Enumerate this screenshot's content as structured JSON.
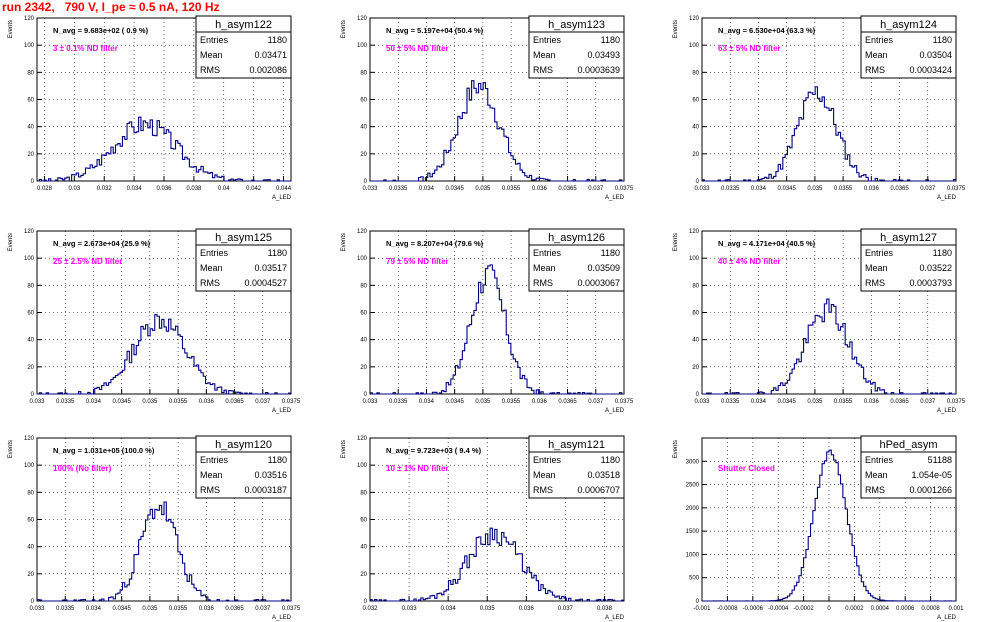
{
  "header": {
    "run_title": "run 2342,   790 V, I_pe ≈ 0.5 nA, 120 Hz"
  },
  "chart_data": [
    {
      "type": "histogram",
      "hist_name": "h_asym122",
      "ylabel": "Events",
      "xlabel": "A_LED",
      "xlim": [
        0.0275,
        0.0445
      ],
      "ylim": [
        0,
        120
      ],
      "xticks": [
        0.028,
        0.03,
        0.032,
        0.034,
        0.036,
        0.038,
        0.04,
        0.042,
        0.044
      ],
      "xtick_labels": [
        "0.028",
        "0.03",
        "0.032",
        "0.034",
        "0.036",
        "0.038",
        "0.04",
        "0.042",
        "0.044"
      ],
      "yticks": [
        0,
        20,
        40,
        60,
        80,
        100,
        120
      ],
      "stats": {
        "entries": "1180",
        "mean": "0.03471",
        "rms": "0.002086"
      },
      "navg": "N_avg = 9.683e+02 ( 0.9 %)",
      "filter": "3 ± 0.1% ND filter",
      "shape": {
        "mean": 0.03471,
        "sigma": 0.002086,
        "peak": 42,
        "seed": 3
      }
    },
    {
      "type": "histogram",
      "hist_name": "h_asym123",
      "ylabel": "Events",
      "xlabel": "A_LED",
      "xlim": [
        0.033,
        0.0375
      ],
      "ylim": [
        0,
        120
      ],
      "xticks": [
        0.033,
        0.0335,
        0.034,
        0.0345,
        0.035,
        0.0355,
        0.036,
        0.0365,
        0.037,
        0.0375
      ],
      "xtick_labels": [
        "0.033",
        "0.0335",
        "0.034",
        "0.0345",
        "0.035",
        "0.0355",
        "0.036",
        "0.0365",
        "0.037",
        "0.0375"
      ],
      "yticks": [
        0,
        20,
        40,
        60,
        80,
        100,
        120
      ],
      "stats": {
        "entries": "1180",
        "mean": "0.03493",
        "rms": "0.0003639"
      },
      "navg": "N_avg = 5.197e+04 (50.4 %)",
      "filter": "50 ± 5% ND filter",
      "shape": {
        "mean": 0.03493,
        "sigma": 0.0003639,
        "peak": 70,
        "seed": 7
      }
    },
    {
      "type": "histogram",
      "hist_name": "h_asym124",
      "ylabel": "Events",
      "xlabel": "A_LED",
      "xlim": [
        0.033,
        0.0375
      ],
      "ylim": [
        0,
        120
      ],
      "xticks": [
        0.033,
        0.0335,
        0.034,
        0.0345,
        0.035,
        0.0355,
        0.036,
        0.0365,
        0.037,
        0.0375
      ],
      "xtick_labels": [
        "0.033",
        "0.0335",
        "0.034",
        "0.0345",
        "0.035",
        "0.0355",
        "0.036",
        "0.0365",
        "0.037",
        "0.0375"
      ],
      "yticks": [
        0,
        20,
        40,
        60,
        80,
        100,
        120
      ],
      "stats": {
        "entries": "1180",
        "mean": "0.03504",
        "rms": "0.0003424"
      },
      "navg": "N_avg = 6.530e+04 (63.3 %)",
      "filter": "63 ± 5% ND filter",
      "shape": {
        "mean": 0.03504,
        "sigma": 0.0003424,
        "peak": 65,
        "seed": 11
      }
    },
    {
      "type": "histogram",
      "hist_name": "h_asym125",
      "ylabel": "Events",
      "xlabel": "A_LED",
      "xlim": [
        0.033,
        0.0375
      ],
      "ylim": [
        0,
        120
      ],
      "xticks": [
        0.033,
        0.0335,
        0.034,
        0.0345,
        0.035,
        0.0355,
        0.036,
        0.0365,
        0.037,
        0.0375
      ],
      "xtick_labels": [
        "0.033",
        "0.0335",
        "0.034",
        "0.0345",
        "0.035",
        "0.0355",
        "0.036",
        "0.0365",
        "0.037",
        "0.0375"
      ],
      "yticks": [
        0,
        20,
        40,
        60,
        80,
        100,
        120
      ],
      "stats": {
        "entries": "1180",
        "mean": "0.03517",
        "rms": "0.0004527"
      },
      "navg": "N_avg = 2.673e+04 (25.9 %)",
      "filter": "25 ± 2.5% ND filter",
      "shape": {
        "mean": 0.03517,
        "sigma": 0.0004527,
        "peak": 55,
        "seed": 13
      }
    },
    {
      "type": "histogram",
      "hist_name": "h_asym126",
      "ylabel": "Events",
      "xlabel": "A_LED",
      "xlim": [
        0.033,
        0.0375
      ],
      "ylim": [
        0,
        120
      ],
      "xticks": [
        0.033,
        0.0335,
        0.034,
        0.0345,
        0.035,
        0.0355,
        0.036,
        0.0365,
        0.037,
        0.0375
      ],
      "xtick_labels": [
        "0.033",
        "0.0335",
        "0.034",
        "0.0345",
        "0.035",
        "0.0355",
        "0.036",
        "0.0365",
        "0.037",
        "0.0375"
      ],
      "yticks": [
        0,
        20,
        40,
        60,
        80,
        100,
        120
      ],
      "stats": {
        "entries": "1180",
        "mean": "0.03509",
        "rms": "0.0003067"
      },
      "navg": "N_avg = 8.207e+04 (79.6 %)",
      "filter": "79 ± 5% ND filter",
      "shape": {
        "mean": 0.03509,
        "sigma": 0.0003067,
        "peak": 88,
        "seed": 17
      }
    },
    {
      "type": "histogram",
      "hist_name": "h_asym127",
      "ylabel": "Events",
      "xlabel": "A_LED",
      "xlim": [
        0.033,
        0.0375
      ],
      "ylim": [
        0,
        120
      ],
      "xticks": [
        0.033,
        0.0335,
        0.034,
        0.0345,
        0.035,
        0.0355,
        0.036,
        0.0365,
        0.037,
        0.0375
      ],
      "xtick_labels": [
        "0.033",
        "0.0335",
        "0.034",
        "0.0345",
        "0.035",
        "0.0355",
        "0.036",
        "0.0365",
        "0.037",
        "0.0375"
      ],
      "yticks": [
        0,
        20,
        40,
        60,
        80,
        100,
        120
      ],
      "stats": {
        "entries": "1180",
        "mean": "0.03522",
        "rms": "0.0003793"
      },
      "navg": "N_avg = 4.171e+04 (40.5 %)",
      "filter": "40 ± 4% ND filter",
      "shape": {
        "mean": 0.03522,
        "sigma": 0.0003793,
        "peak": 62,
        "seed": 19
      }
    },
    {
      "type": "histogram",
      "hist_name": "h_asym120",
      "ylabel": "Events",
      "xlabel": "A_LED",
      "xlim": [
        0.033,
        0.0375
      ],
      "ylim": [
        0,
        120
      ],
      "xticks": [
        0.033,
        0.0335,
        0.034,
        0.0345,
        0.035,
        0.0355,
        0.036,
        0.0365,
        0.037,
        0.0375
      ],
      "xtick_labels": [
        "0.033",
        "0.0335",
        "0.034",
        "0.0345",
        "0.035",
        "0.0355",
        "0.036",
        "0.0365",
        "0.037",
        "0.0375"
      ],
      "yticks": [
        0,
        20,
        40,
        60,
        80,
        100,
        120
      ],
      "stats": {
        "entries": "1180",
        "mean": "0.03516",
        "rms": "0.0003187"
      },
      "navg": "N_avg = 1.031e+05 (100.0 %)",
      "filter": "100% (No filter)",
      "shape": {
        "mean": 0.03516,
        "sigma": 0.0003187,
        "peak": 70,
        "seed": 23
      }
    },
    {
      "type": "histogram",
      "hist_name": "h_asym121",
      "ylabel": "Events",
      "xlabel": "A_LED",
      "xlim": [
        0.032,
        0.0385
      ],
      "ylim": [
        0,
        120
      ],
      "xticks": [
        0.032,
        0.033,
        0.034,
        0.035,
        0.036,
        0.037,
        0.038
      ],
      "xtick_labels": [
        "0.032",
        "0.033",
        "0.034",
        "0.035",
        "0.036",
        "0.037",
        "0.038"
      ],
      "yticks": [
        0,
        20,
        40,
        60,
        80,
        100,
        120
      ],
      "stats": {
        "entries": "1180",
        "mean": "0.03518",
        "rms": "0.0006707"
      },
      "navg": "N_avg = 9.723e+03 ( 9.4 %)",
      "filter": "10 ± 1% ND filter",
      "shape": {
        "mean": 0.03518,
        "sigma": 0.0006707,
        "peak": 50,
        "seed": 29
      }
    },
    {
      "type": "histogram",
      "hist_name": "hPed_asym",
      "ylabel": "Events",
      "xlabel": "A_LED",
      "xlim": [
        -0.001,
        0.001
      ],
      "ylim": [
        0,
        3500
      ],
      "xticks": [
        -0.001,
        -0.0008,
        -0.0006,
        -0.0004,
        -0.0002,
        0,
        0.0002,
        0.0004,
        0.0006,
        0.0008,
        0.001
      ],
      "xtick_labels": [
        "-0.001",
        "-0.0008",
        "-0.0006",
        "-0.0004",
        "-0.0002",
        "0",
        "0.0002",
        "0.0004",
        "0.0006",
        "0.0008",
        "0.001"
      ],
      "yticks": [
        0,
        500,
        1000,
        1500,
        2000,
        2500,
        3000
      ],
      "stats": {
        "entries": "51188",
        "mean": "1.054e-05",
        "rms": "0.0001266"
      },
      "navg": "",
      "filter": "Shutter Closed",
      "shape": {
        "mean": 1.054e-05,
        "sigma": 0.0001266,
        "peak": 3200,
        "seed": 31
      }
    }
  ],
  "labels": {
    "entries": "Entries",
    "mean": "Mean",
    "rms": "RMS"
  },
  "colors": {
    "histogram": "#000080",
    "title": "#ff0000",
    "filter": "#ff00ff",
    "grid": "#000000"
  }
}
